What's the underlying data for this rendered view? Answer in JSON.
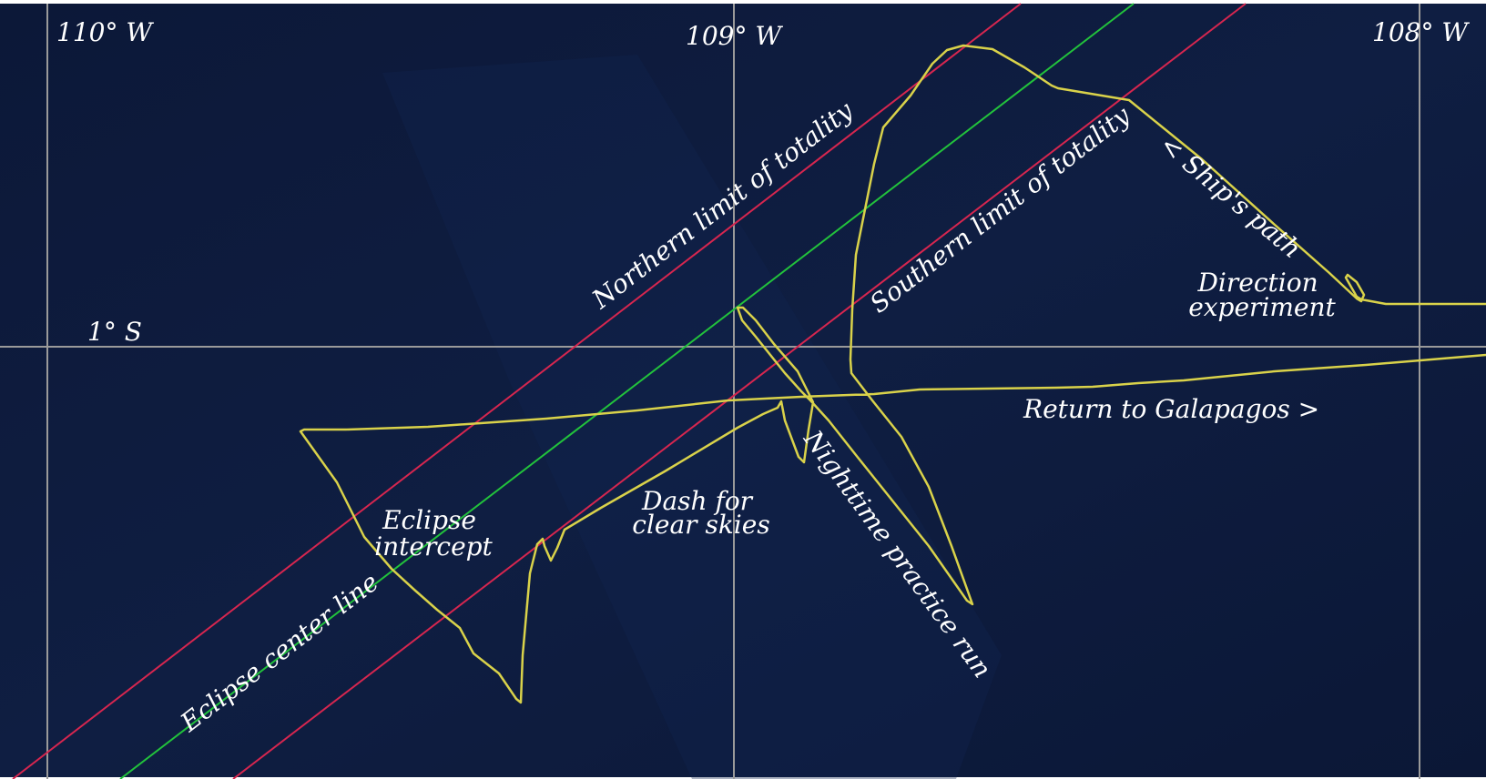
{
  "colors": {
    "ocean": "#0c1a3a",
    "graticule": "#9a9a9a",
    "limits": "#d6264f",
    "center_line": "#22c23c",
    "ship_path": "#d9d24a",
    "text": "#ffffff"
  },
  "graticule": {
    "lon_110": "110° W",
    "lon_109": "109° W",
    "lon_108": "108° W",
    "lat_1s": "1° S"
  },
  "lines": {
    "northern_limit": "Northern limit of totality",
    "southern_limit": "Southern limit of totality",
    "center_line": "Eclipse center line"
  },
  "annotations": {
    "ships_path": "< Ship's path",
    "direction_1": "Direction",
    "direction_2": "experiment",
    "return": "Return to Galapagos >",
    "eclipse_1": "Eclipse",
    "eclipse_2": "intercept",
    "dash_1": "Dash for",
    "dash_2": "clear skies",
    "night": "Nighttime practice run"
  }
}
